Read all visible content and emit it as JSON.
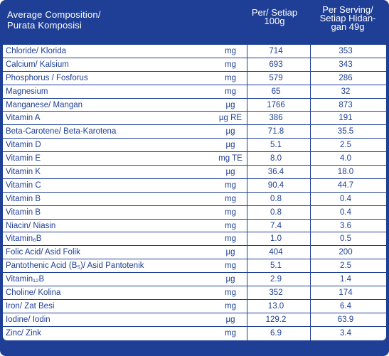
{
  "header": {
    "title_line1": "Average Composition/",
    "title_line2": "Purata Komposisi",
    "per100_line1": "Per/ Setiap",
    "per100_line2": "100g",
    "serving_line1": "Per Serving/",
    "serving_line2": "Setiap Hidan-",
    "serving_line3": "gan 49g"
  },
  "rows": [
    {
      "name": "Chloride/ Klorida",
      "unit": "mg",
      "per100": "714",
      "serving": "353"
    },
    {
      "name": "Calcium/ Kalsium",
      "unit": "mg",
      "per100": "693",
      "serving": "343"
    },
    {
      "name": "Phosphorus / Fosforus",
      "unit": "mg",
      "per100": "579",
      "serving": "286"
    },
    {
      "name": "Magnesium",
      "unit": "mg",
      "per100": "65",
      "serving": "32"
    },
    {
      "name": "Manganese/ Mangan",
      "unit": "µg",
      "per100": "1766",
      "serving": "873"
    },
    {
      "name": "Vitamin A",
      "unit": "µg RE",
      "per100": "386",
      "serving": "191"
    },
    {
      "name": "Beta-Carotene/ Beta-Karotena",
      "unit": "µg",
      "per100": "71.8",
      "serving": "35.5"
    },
    {
      "name": "Vitamin D",
      "unit": "µg",
      "per100": "5.1",
      "serving": "2.5"
    },
    {
      "name": "Vitamin E",
      "unit": "mg TE",
      "per100": "8.0",
      "serving": "4.0"
    },
    {
      "name": "Vitamin K",
      "unit": "µg",
      "per100": "36.4",
      "serving": "18.0"
    },
    {
      "name": "Vitamin C",
      "unit": "mg",
      "per100": "90.4",
      "serving": "44.7"
    },
    {
      "name": "Vitamin B",
      "unit": "mg",
      "per100": "0.8",
      "serving": "0.4"
    },
    {
      "name": "Vitamin B",
      "unit": "mg",
      "per100": "0.8",
      "serving": "0.4"
    },
    {
      "name": "Niacin/ Niasin",
      "unit": "mg",
      "per100": "7.4",
      "serving": "3.6"
    },
    {
      "name": "Vitamin₆B",
      "unit": "mg",
      "per100": "1.0",
      "serving": "0.5"
    },
    {
      "name": "Folic Acid/ Asid Folik",
      "unit": "µg",
      "per100": "404",
      "serving": "200"
    },
    {
      "name": "Pantothenic Acid (B₅)/ Asid Pantotenik",
      "unit": "mg",
      "per100": "5.1",
      "serving": "2.5"
    },
    {
      "name": "Vitamin₁₂B",
      "unit": "µg",
      "per100": "2.9",
      "serving": "1.4"
    },
    {
      "name": "Choline/ Kolina",
      "unit": "mg",
      "per100": "352",
      "serving": "174"
    },
    {
      "name": "Iron/ Zat Besi",
      "unit": "mg",
      "per100": "13.0",
      "serving": "6.4"
    },
    {
      "name": "Iodine/ Iodin",
      "unit": "µg",
      "per100": "129.2",
      "serving": "63.9"
    },
    {
      "name": "Zinc/ Zink",
      "unit": "mg",
      "per100": "6.9",
      "serving": "3.4"
    }
  ]
}
